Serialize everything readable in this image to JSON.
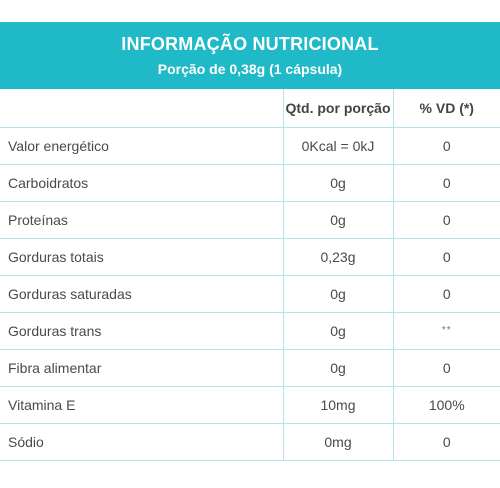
{
  "header": {
    "title": "INFORMAÇÃO NUTRICIONAL",
    "subtitle": "Porção de 0,38g (1 cápsula)"
  },
  "table": {
    "columns": [
      "",
      "Qtd. por porção",
      "% VD (*)"
    ],
    "rows": [
      {
        "name": "Valor energético",
        "qty": "0Kcal = 0kJ",
        "vd": "0"
      },
      {
        "name": "Carboidratos",
        "qty": "0g",
        "vd": "0"
      },
      {
        "name": "Proteínas",
        "qty": "0g",
        "vd": "0"
      },
      {
        "name": "Gorduras totais",
        "qty": "0,23g",
        "vd": "0"
      },
      {
        "name": "Gorduras saturadas",
        "qty": "0g",
        "vd": "0"
      },
      {
        "name": "Gorduras trans",
        "qty": "0g",
        "vd": "**"
      },
      {
        "name": "Fibra alimentar",
        "qty": "0g",
        "vd": "0"
      },
      {
        "name": "Vitamina E",
        "qty": "10mg",
        "vd": "100%"
      },
      {
        "name": "Sódio",
        "qty": "0mg",
        "vd": "0"
      }
    ]
  },
  "colors": {
    "header_bg": "#20b9c8",
    "grid_line": "#b7e4ea",
    "text": "#4a4a4a"
  }
}
